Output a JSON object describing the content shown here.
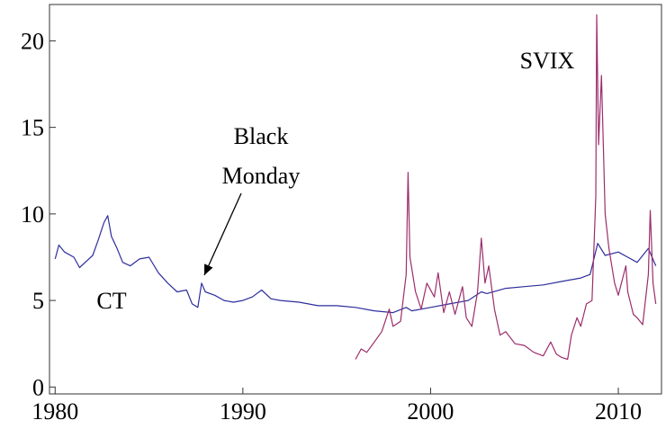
{
  "chart_data": {
    "type": "line",
    "xlim": [
      1979.7,
      2012.3
    ],
    "ylim": [
      -0.4,
      22.1
    ],
    "xticks": [
      1980,
      1990,
      2000,
      2010
    ],
    "yticks": [
      0,
      5,
      10,
      15,
      20
    ],
    "annotation": [
      "Black",
      "Monday"
    ],
    "series": [
      {
        "name": "CT",
        "color": "#2e2e9c",
        "x": [
          1980.0,
          1980.2,
          1980.5,
          1981.0,
          1981.3,
          1981.7,
          1982.0,
          1982.3,
          1982.6,
          1982.8,
          1983.0,
          1983.3,
          1983.6,
          1984.0,
          1984.5,
          1985.0,
          1985.5,
          1986.0,
          1986.5,
          1987.0,
          1987.3,
          1987.6,
          1987.8,
          1988.0,
          1988.5,
          1989.0,
          1989.5,
          1990.0,
          1990.5,
          1991.0,
          1991.5,
          1992.0,
          1993.0,
          1994.0,
          1995.0,
          1996.0,
          1997.0,
          1998.0,
          1998.7,
          1999.0,
          2000.0,
          2001.0,
          2002.0,
          2002.7,
          2003.0,
          2004.0,
          2005.0,
          2006.0,
          2007.0,
          2008.0,
          2008.5,
          2008.9,
          2009.3,
          2010.0,
          2010.5,
          2011.0,
          2011.6,
          2012.0
        ],
        "values": [
          7.4,
          8.2,
          7.8,
          7.5,
          6.9,
          7.3,
          7.6,
          8.5,
          9.5,
          9.9,
          8.7,
          8.0,
          7.2,
          7.0,
          7.4,
          7.5,
          6.6,
          6.0,
          5.5,
          5.6,
          4.8,
          4.6,
          6.0,
          5.5,
          5.3,
          5.0,
          4.9,
          5.0,
          5.2,
          5.6,
          5.1,
          5.0,
          4.9,
          4.7,
          4.7,
          4.6,
          4.4,
          4.3,
          4.6,
          4.4,
          4.6,
          4.8,
          5.0,
          5.5,
          5.4,
          5.7,
          5.8,
          5.9,
          6.1,
          6.3,
          6.5,
          8.3,
          7.6,
          7.8,
          7.5,
          7.2,
          8.0,
          7.0
        ]
      },
      {
        "name": "SVIX",
        "color": "#9c2d6c",
        "x": [
          1996.0,
          1996.3,
          1996.6,
          1997.0,
          1997.4,
          1997.8,
          1998.0,
          1998.4,
          1998.7,
          1998.8,
          1998.9,
          1999.2,
          1999.5,
          1999.8,
          2000.2,
          2000.4,
          2000.7,
          2001.0,
          2001.3,
          2001.7,
          2001.9,
          2002.2,
          2002.5,
          2002.7,
          2002.9,
          2003.1,
          2003.4,
          2003.7,
          2004.0,
          2004.5,
          2005.0,
          2005.5,
          2006.0,
          2006.4,
          2006.7,
          2007.0,
          2007.3,
          2007.5,
          2007.8,
          2008.0,
          2008.3,
          2008.6,
          2008.8,
          2008.85,
          2008.95,
          2009.1,
          2009.3,
          2009.5,
          2009.8,
          2010.0,
          2010.4,
          2010.5,
          2010.8,
          2011.0,
          2011.3,
          2011.6,
          2011.7,
          2011.85,
          2012.0
        ],
        "values": [
          1.6,
          2.2,
          2.0,
          2.6,
          3.2,
          4.5,
          3.5,
          3.8,
          6.5,
          12.4,
          7.5,
          5.5,
          4.5,
          6.0,
          5.2,
          6.6,
          4.3,
          5.5,
          4.2,
          5.8,
          4.0,
          3.5,
          5.5,
          8.6,
          6.0,
          7.0,
          4.5,
          3.0,
          3.2,
          2.5,
          2.4,
          2.0,
          1.8,
          2.6,
          1.9,
          1.7,
          1.6,
          3.0,
          4.0,
          3.5,
          4.8,
          5.0,
          11.0,
          21.5,
          14.0,
          18.0,
          10.0,
          8.0,
          6.0,
          5.3,
          7.0,
          5.5,
          4.2,
          4.0,
          3.6,
          6.5,
          10.2,
          6.0,
          4.8
        ]
      }
    ]
  }
}
